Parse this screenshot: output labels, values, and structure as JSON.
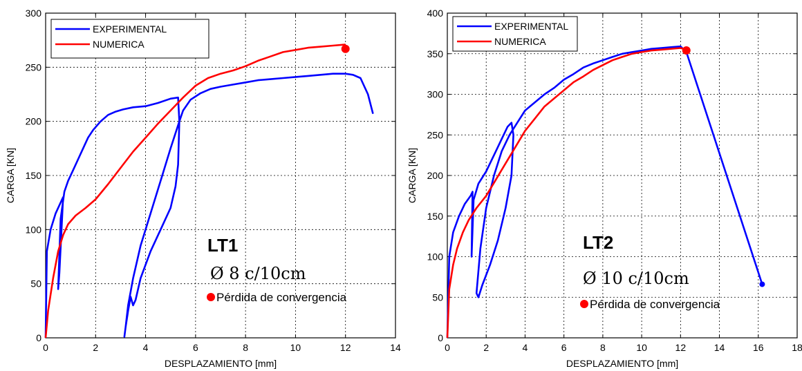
{
  "chart_data": [
    {
      "type": "line",
      "id": "lt1",
      "title": "",
      "xlabel": "DESPLAZAMIENTO [mm]",
      "ylabel": "CARGA [KN]",
      "xlim": [
        0,
        14
      ],
      "ylim": [
        0,
        300
      ],
      "xticks": [
        "0",
        "2",
        "4",
        "6",
        "8",
        "10",
        "12",
        "14"
      ],
      "yticks": [
        "0",
        "50",
        "100",
        "150",
        "200",
        "250",
        "300"
      ],
      "grid": true,
      "legend": "top-left",
      "annotation_label": "LT1",
      "annotation_formula": "Ø 8 c/10cm",
      "marker_note": "Pérdida de convergencia",
      "marker_point": [
        12.0,
        267
      ],
      "marker_color": "#ff0000",
      "series": [
        {
          "name": "EXPERIMENTAL",
          "color": "#0000ff",
          "x": [
            0,
            0.05,
            0.2,
            0.4,
            0.6,
            0.7,
            0.55,
            0.5,
            0.6,
            0.75,
            0.9,
            1.1,
            1.3,
            1.5,
            1.7,
            1.9,
            2.2,
            2.5,
            2.8,
            3.1,
            3.5,
            4.0,
            4.5,
            5.0,
            5.3,
            5.35,
            5.3,
            5.2,
            5.0,
            4.6,
            4.2,
            3.8,
            3.6,
            3.5,
            3.4,
            3.3,
            3.2,
            3.15,
            3.2,
            3.3,
            3.5,
            3.8,
            4.2,
            4.6,
            5.0,
            5.35,
            5.5,
            5.8,
            6.2,
            6.6,
            7.0,
            7.5,
            8.0,
            8.5,
            9.0,
            9.5,
            10.0,
            10.5,
            11.0,
            11.5,
            12.0,
            12.3,
            12.6,
            12.9,
            13.1
          ],
          "y": [
            0,
            80,
            100,
            115,
            125,
            130,
            60,
            45,
            110,
            135,
            145,
            155,
            165,
            175,
            185,
            192,
            200,
            206,
            209,
            211,
            213,
            214,
            217,
            221,
            222,
            200,
            160,
            140,
            120,
            100,
            80,
            55,
            35,
            30,
            38,
            25,
            10,
            1,
            10,
            30,
            55,
            85,
            115,
            145,
            175,
            200,
            210,
            220,
            226,
            230,
            232,
            234,
            236,
            238,
            239,
            240,
            241,
            242,
            243,
            244,
            244,
            243,
            240,
            225,
            207
          ]
        },
        {
          "name": "NUMERICA",
          "color": "#ff0000",
          "x": [
            0,
            0.1,
            0.3,
            0.5,
            0.7,
            0.9,
            1.2,
            1.6,
            2.0,
            2.5,
            3.0,
            3.5,
            4.0,
            4.5,
            5.0,
            5.5,
            6.0,
            6.5,
            7.0,
            7.5,
            8.0,
            8.5,
            9.0,
            9.5,
            10.0,
            10.5,
            11.0,
            11.5,
            12.0
          ],
          "y": [
            0,
            25,
            55,
            80,
            95,
            105,
            113,
            120,
            128,
            142,
            157,
            172,
            185,
            198,
            210,
            222,
            233,
            240,
            244,
            247,
            251,
            256,
            260,
            264,
            266,
            268,
            269,
            270,
            271
          ]
        }
      ]
    },
    {
      "type": "line",
      "id": "lt2",
      "title": "",
      "xlabel": "DESPLAZAMIENTO [mm]",
      "ylabel": "CARGA [KN]",
      "xlim": [
        0,
        18
      ],
      "ylim": [
        0,
        400
      ],
      "xticks": [
        "0",
        "2",
        "4",
        "6",
        "8",
        "10",
        "12",
        "14",
        "16",
        "18"
      ],
      "yticks": [
        "0",
        "50",
        "100",
        "150",
        "200",
        "250",
        "300",
        "350",
        "400"
      ],
      "grid": true,
      "legend": "top-left",
      "annotation_label": "LT2",
      "annotation_formula": "Ø 10 c/10cm",
      "marker_note": "Pérdida de convergencia",
      "marker_point": [
        12.3,
        354
      ],
      "marker_color": "#ff0000",
      "series": [
        {
          "name": "EXPERIMENTAL",
          "color": "#0000ff",
          "x": [
            0,
            0.1,
            0.3,
            0.6,
            0.9,
            1.2,
            1.3,
            1.25,
            1.35,
            1.6,
            2.0,
            2.4,
            2.8,
            3.1,
            3.3,
            3.4,
            3.3,
            3.0,
            2.6,
            2.2,
            1.8,
            1.6,
            1.5,
            1.7,
            2.0,
            2.4,
            2.8,
            3.2,
            3.6,
            4.0,
            4.5,
            5.0,
            5.5,
            6.0,
            6.5,
            7.0,
            7.5,
            8.0,
            8.5,
            9.0,
            9.5,
            10.0,
            10.5,
            11.0,
            11.5,
            12.0,
            12.3,
            16.2
          ],
          "y": [
            0,
            100,
            130,
            150,
            165,
            175,
            180,
            100,
            170,
            190,
            205,
            225,
            245,
            260,
            265,
            250,
            200,
            160,
            120,
            90,
            65,
            50,
            55,
            110,
            160,
            200,
            230,
            250,
            265,
            280,
            290,
            300,
            308,
            318,
            325,
            333,
            338,
            342,
            346,
            350,
            352,
            354,
            356,
            357,
            358,
            359,
            352,
            66
          ]
        },
        {
          "name": "NUMERICA",
          "color": "#ff0000",
          "x": [
            0,
            0.1,
            0.3,
            0.5,
            0.8,
            1.1,
            1.5,
            2.0,
            2.5,
            3.0,
            3.5,
            4.0,
            4.5,
            5.0,
            5.5,
            6.0,
            6.5,
            7.0,
            7.5,
            8.0,
            8.5,
            9.0,
            9.5,
            10.0,
            10.5,
            11.0,
            11.5,
            12.0,
            12.3
          ],
          "y": [
            0,
            60,
            90,
            110,
            130,
            145,
            160,
            175,
            195,
            215,
            235,
            255,
            270,
            285,
            295,
            305,
            315,
            322,
            330,
            336,
            342,
            346,
            350,
            352,
            354,
            355,
            356,
            357,
            355
          ]
        }
      ]
    }
  ]
}
